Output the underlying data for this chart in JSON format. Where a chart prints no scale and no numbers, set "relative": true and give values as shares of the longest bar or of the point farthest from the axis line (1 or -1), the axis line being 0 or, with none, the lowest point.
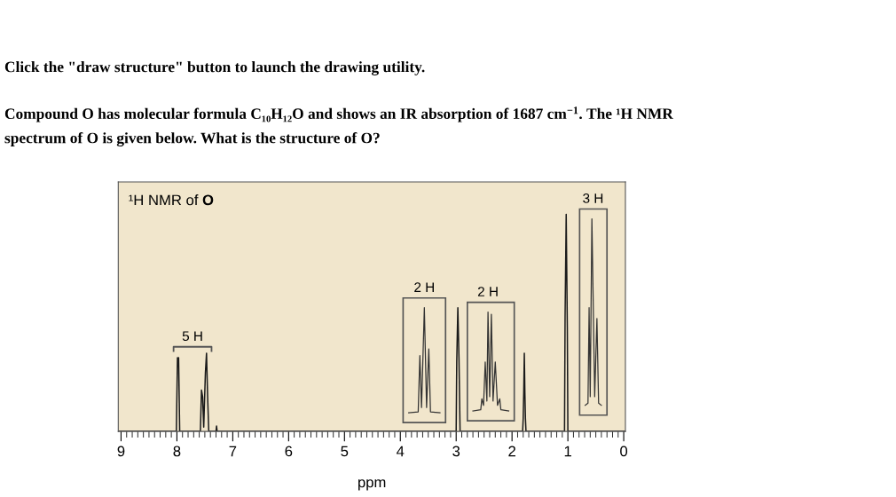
{
  "chart_data": {
    "type": "line",
    "title": "¹H NMR of O",
    "xlabel": "ppm",
    "relative": true,
    "xlim": [
      9.05,
      -0.03
    ],
    "xticks": [
      9,
      8,
      7,
      6,
      5,
      4,
      3,
      2,
      1,
      0
    ],
    "grid": false,
    "legend": false,
    "marker": "none",
    "line_style": "solid",
    "annotations": [
      "Click the \"draw structure\" button to launch the drawing utility.",
      "Compound O has molecular formula C₁₀H₁₂O and shows an IR absorption of 1687 cm$^{−1}$. The ¹H NMR",
      "spectrum of O is given below. What is the structure of O?",
      {
        "text": "5 H",
        "x": 7.47,
        "y": 0.36
      },
      {
        "text": "2 H",
        "x": 3.57,
        "y": 0.57
      },
      {
        "text": "2 H",
        "x": 2.43,
        "y": 0.55
      },
      {
        "text": "3 H",
        "x": 0.55,
        "y": 0.98
      }
    ],
    "series": [
      {
        "color": "#1a1a1a",
        "x": [
          9.05,
          8.01,
          7.99,
          7.98,
          7.97,
          7.95,
          7.58,
          7.56,
          7.54,
          7.52,
          7.49,
          7.47,
          7.45,
          7.43,
          7.3,
          7.29,
          7.28,
          3.0,
          2.99,
          2.97,
          2.95,
          2.93,
          1.81,
          1.8,
          1.79,
          1.78,
          1.77,
          1.76,
          1.75,
          1.06,
          1.05,
          1.03,
          1.01,
          1.0,
          -0.03
        ],
        "values": [
          0,
          0,
          0.34,
          0.3,
          0.34,
          0,
          0,
          0.19,
          0.16,
          0.02,
          0.27,
          0.36,
          0.16,
          0,
          0,
          0.025,
          0,
          0,
          0.32,
          0.57,
          0.34,
          0,
          0,
          0.06,
          0.18,
          0.36,
          0.18,
          0.06,
          0,
          0,
          0.53,
          1.0,
          0.48,
          0,
          0
        ]
      },
      {
        "color": "#333333",
        "x": [
          3.85,
          3.68,
          3.65,
          3.62,
          3.57,
          3.53,
          3.49,
          3.46,
          3.29
        ],
        "values": [
          0.086,
          0.09,
          0.35,
          0.11,
          0.57,
          0.11,
          0.38,
          0.09,
          0.086
        ]
      },
      {
        "color": "#333333",
        "x": [
          2.7,
          2.56,
          2.54,
          2.51,
          2.48,
          2.45,
          2.43,
          2.4,
          2.37,
          2.34,
          2.3,
          2.26,
          2.22,
          2.2,
          2.06
        ],
        "values": [
          0.094,
          0.1,
          0.15,
          0.12,
          0.32,
          0.14,
          0.55,
          0.16,
          0.54,
          0.14,
          0.32,
          0.12,
          0.15,
          0.1,
          0.094
        ]
      },
      {
        "color": "#333333",
        "x": [
          0.69,
          0.64,
          0.62,
          0.6,
          0.57,
          0.52,
          0.48,
          0.45,
          0.4
        ],
        "values": [
          0.12,
          0.13,
          0.57,
          0.16,
          0.98,
          0.16,
          0.52,
          0.13,
          0.12
        ]
      }
    ]
  }
}
